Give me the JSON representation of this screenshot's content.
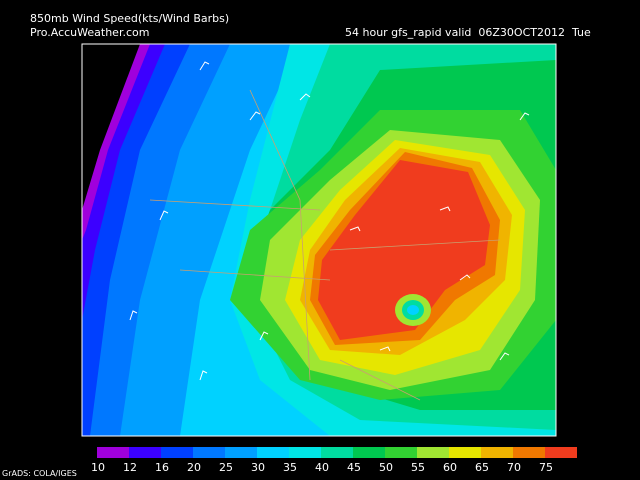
{
  "header": {
    "title": "850mb Wind Speed(kts/Wind Barbs)",
    "source": "Pro.AccuWeather.com",
    "run": "54 hour gfs_rapid valid  06Z30OCT2012  Tue"
  },
  "legend": {
    "levels": [
      10,
      12,
      16,
      20,
      25,
      30,
      35,
      40,
      45,
      50,
      55,
      60,
      65,
      70,
      75
    ],
    "colors": [
      "#a000dc",
      "#3c00ff",
      "#0040ff",
      "#0078ff",
      "#00a0ff",
      "#00d2ff",
      "#00e6e6",
      "#00dca0",
      "#00c850",
      "#32d232",
      "#a0e632",
      "#e6e600",
      "#f0b400",
      "#f07800",
      "#f03c1e"
    ]
  },
  "credit": "GrADS: COLA/IGES"
}
